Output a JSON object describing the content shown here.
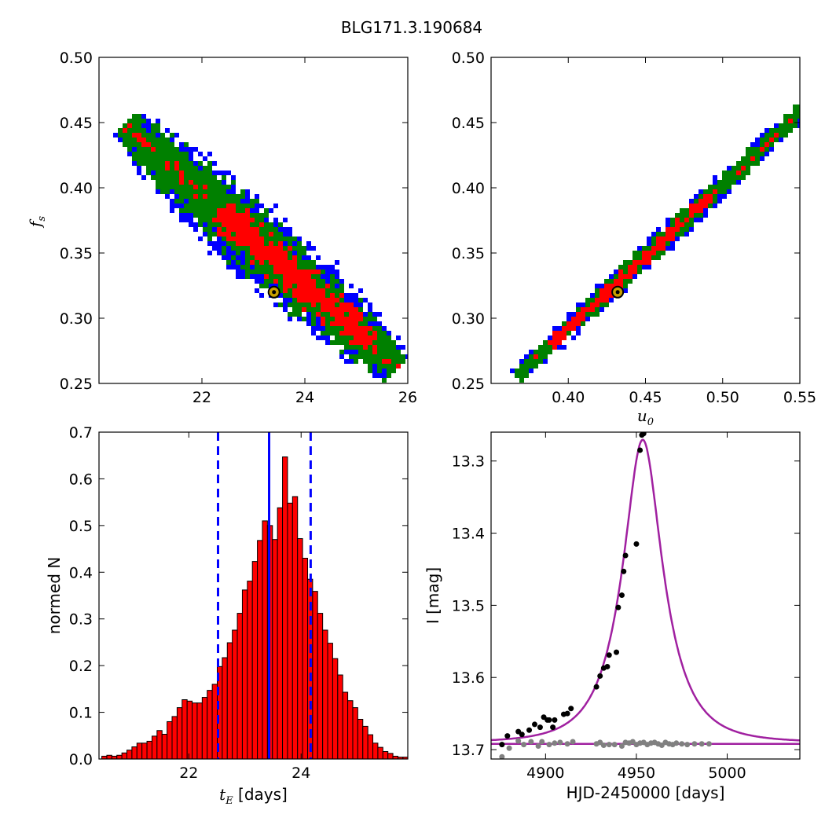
{
  "figure_title": "BLG171.3.190684",
  "chart_data": [
    {
      "panel": "top-left",
      "type": "heatmap",
      "title": "",
      "xlabel": "",
      "ylabel_main": "f",
      "ylabel_sub": "s",
      "xlim": [
        20.0,
        26.0
      ],
      "ylim": [
        0.25,
        0.5
      ],
      "xticks": [
        22,
        24,
        26
      ],
      "xtick_labels": [
        "22",
        "24",
        "26"
      ],
      "yticks": [
        0.25,
        0.3,
        0.35,
        0.4,
        0.45,
        0.5
      ],
      "ytick_labels": [
        "0.25",
        "0.30",
        "0.35",
        "0.40",
        "0.45",
        "0.50"
      ],
      "levels": [
        {
          "level": "outer",
          "color": "#0000ff"
        },
        {
          "level": "middle",
          "color": "#008000"
        },
        {
          "level": "inner",
          "color": "#ff0000"
        }
      ],
      "best_fit": {
        "x": 23.4,
        "y": 0.32
      }
    },
    {
      "panel": "top-right",
      "type": "heatmap",
      "title": "",
      "xlabel_main": "u",
      "xlabel_sub": "0",
      "ylabel": "",
      "xlim": [
        0.35,
        0.55
      ],
      "ylim": [
        0.25,
        0.5
      ],
      "xticks": [
        0.4,
        0.45,
        0.5,
        0.55
      ],
      "xtick_labels": [
        "0.40",
        "0.45",
        "0.50",
        "0.55"
      ],
      "yticks": [
        0.25,
        0.3,
        0.35,
        0.4,
        0.45,
        0.5
      ],
      "ytick_labels": [
        "0.25",
        "0.30",
        "0.35",
        "0.40",
        "0.45",
        "0.50"
      ],
      "levels": [
        {
          "level": "outer",
          "color": "#0000ff"
        },
        {
          "level": "middle",
          "color": "#008000"
        },
        {
          "level": "inner",
          "color": "#ff0000"
        }
      ],
      "best_fit": {
        "x": 0.432,
        "y": 0.32
      }
    },
    {
      "panel": "bottom-left",
      "type": "bar",
      "title": "",
      "xlabel_main": "t",
      "xlabel_sub": "E",
      "xlabel_rest": " [days]",
      "ylabel": "normed N",
      "xlim": [
        20.4,
        25.9
      ],
      "ylim": [
        0.0,
        0.7
      ],
      "xticks": [
        22,
        24
      ],
      "xtick_labels": [
        "22",
        "24"
      ],
      "yticks": [
        0.0,
        0.1,
        0.2,
        0.3,
        0.4,
        0.5,
        0.6,
        0.7
      ],
      "ytick_labels": [
        "0.0",
        "0.1",
        "0.2",
        "0.3",
        "0.4",
        "0.5",
        "0.6",
        "0.7"
      ],
      "bin_start": 20.45,
      "bin_width": 0.0894,
      "values": [
        0.006,
        0.008,
        0.006,
        0.008,
        0.013,
        0.019,
        0.026,
        0.034,
        0.034,
        0.038,
        0.049,
        0.061,
        0.053,
        0.08,
        0.091,
        0.11,
        0.127,
        0.124,
        0.12,
        0.12,
        0.132,
        0.147,
        0.16,
        0.198,
        0.217,
        0.249,
        0.276,
        0.312,
        0.362,
        0.381,
        0.423,
        0.468,
        0.51,
        0.5,
        0.47,
        0.538,
        0.647,
        0.548,
        0.562,
        0.472,
        0.43,
        0.385,
        0.359,
        0.312,
        0.276,
        0.248,
        0.215,
        0.18,
        0.143,
        0.125,
        0.11,
        0.085,
        0.07,
        0.052,
        0.034,
        0.025,
        0.016,
        0.012,
        0.006,
        0.004,
        0.004
      ],
      "bar_color": "#ff0000",
      "solid_line": 23.43,
      "dashed_lines": [
        22.52,
        24.17
      ],
      "line_color": "#0000ff"
    },
    {
      "panel": "bottom-right",
      "type": "scatter",
      "title": "",
      "xlabel": "HJD-2450000 [days]",
      "ylabel": "I [mag]",
      "xlim": [
        4870,
        5040
      ],
      "ylim": [
        13.713,
        13.26
      ],
      "inverted_y": true,
      "xticks": [
        4900,
        4950,
        5000
      ],
      "xtick_labels": [
        "4900",
        "4950",
        "5000"
      ],
      "yticks": [
        13.3,
        13.4,
        13.5,
        13.6,
        13.7
      ],
      "ytick_labels": [
        "13.3",
        "13.4",
        "13.5",
        "13.6",
        "13.7"
      ],
      "model": {
        "color": "#a020a0",
        "t0": 4953.5,
        "tE": 23.4,
        "u0": 0.432,
        "fs": 0.32,
        "I_base": 13.69
      },
      "baseline": {
        "color": "#a020a0",
        "value": 13.692
      },
      "series": [
        {
          "color": "#000000",
          "x": [
            4876,
            4879,
            4885,
            4887,
            4891,
            4894,
            4897,
            4899,
            4901,
            4902,
            4904,
            4905,
            4910,
            4912,
            4914,
            4928,
            4930,
            4932,
            4934,
            4935,
            4939,
            4940,
            4942,
            4943,
            4944,
            4950,
            4952,
            4953,
            4954
          ],
          "y": [
            13.693,
            13.681,
            13.675,
            13.679,
            13.673,
            13.665,
            13.669,
            13.655,
            13.659,
            13.659,
            13.669,
            13.659,
            13.651,
            13.65,
            13.643,
            13.613,
            13.598,
            13.587,
            13.585,
            13.569,
            13.565,
            13.503,
            13.486,
            13.453,
            13.431,
            13.415,
            13.285,
            13.264,
            13.262
          ]
        },
        {
          "color": "#808080",
          "x": [
            4876,
            4880,
            4885,
            4888,
            4892,
            4896,
            4898,
            4902,
            4905,
            4908,
            4912,
            4915,
            4928,
            4930,
            4932,
            4935,
            4938,
            4942,
            4944,
            4946,
            4948,
            4950,
            4952,
            4954,
            4956,
            4958,
            4960,
            4962,
            4964,
            4966,
            4968,
            4970,
            4972,
            4975,
            4978,
            4982,
            4986,
            4990
          ],
          "y": [
            13.71,
            13.698,
            13.688,
            13.693,
            13.689,
            13.695,
            13.689,
            13.693,
            13.691,
            13.69,
            13.692,
            13.689,
            13.692,
            13.69,
            13.694,
            13.693,
            13.693,
            13.695,
            13.69,
            13.691,
            13.689,
            13.693,
            13.691,
            13.69,
            13.693,
            13.691,
            13.69,
            13.692,
            13.694,
            13.69,
            13.692,
            13.693,
            13.691,
            13.692,
            13.693,
            13.692,
            13.692,
            13.692
          ]
        }
      ]
    }
  ]
}
